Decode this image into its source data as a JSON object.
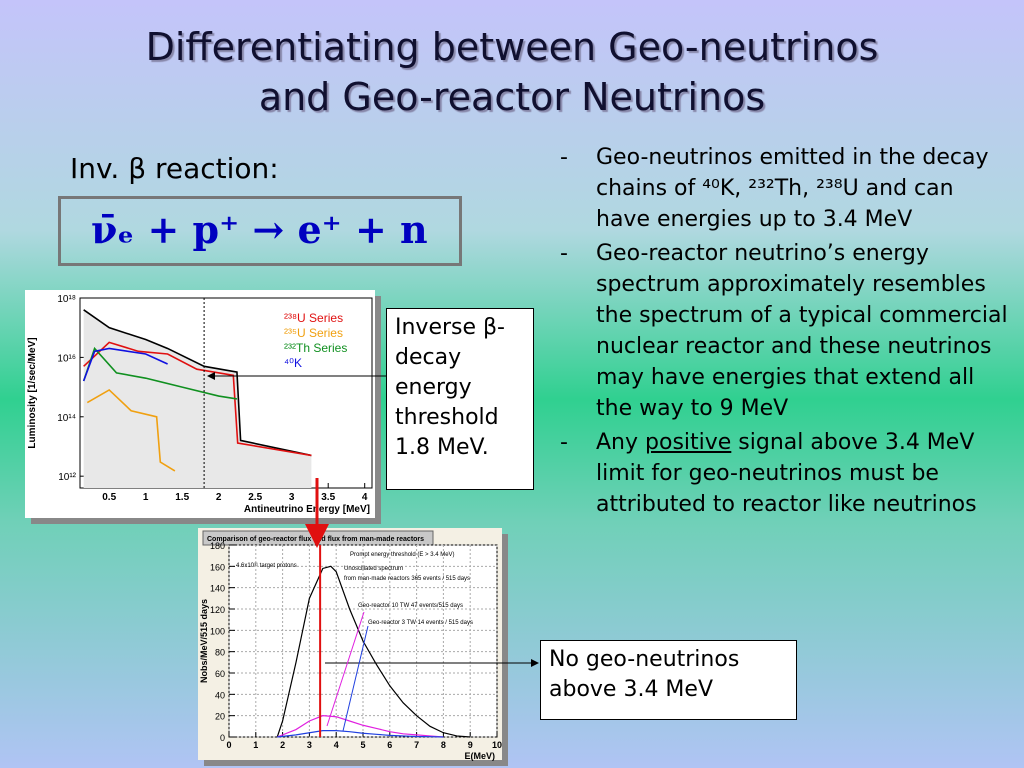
{
  "title_lines": [
    "Differentiating between Geo-neutrinos",
    "and Geo-reactor Neutrinos"
  ],
  "reaction_label": "Inv. β reaction:",
  "equation": "ν̄ₑ + p⁺ → e⁺ + n",
  "bullets": [
    {
      "marker": "-",
      "parts": [
        "Geo-neutrinos emitted in the decay chains of ⁴⁰K, ²³²Th, ²³⁸U and can have energies up to 3.4 MeV"
      ]
    },
    {
      "marker": "-",
      "parts": [
        "Geo-reactor neutrino’s energy spectrum approximately resembles the spectrum of a typical commercial nuclear reactor and these neutrinos may have energies that extend all the way to 9 MeV"
      ]
    },
    {
      "marker": "-",
      "parts": [
        "Any ",
        "positive",
        " signal above 3.4 MeV limit for geo-neutrinos must be attributed to reactor like neutrinos"
      ]
    }
  ],
  "callout_threshold": "Inverse β-decay energy threshold 1.8 MeV.",
  "callout_no_geo": "No geo-neutrinos above 3.4 MeV",
  "chart_data": [
    {
      "type": "line",
      "ylabel": "Luminosity [1/sec/MeV]",
      "xlabel": "Antineutrino Energy [MeV]",
      "log_y": true,
      "xlim": [
        0.1,
        4.1
      ],
      "ylim": [
        400000000000.0,
        1e+18
      ],
      "xticks": [
        0.5,
        1,
        1.5,
        2,
        2.5,
        3,
        3.5,
        4
      ],
      "yticks": [
        {
          "value": 1000000000000.0,
          "label": "10¹²"
        },
        {
          "value": 100000000000000.0,
          "label": "10¹⁴"
        },
        {
          "value": 1e+16,
          "label": "10¹⁶"
        },
        {
          "value": 1e+18,
          "label": "10¹⁸"
        }
      ],
      "threshold": 1.8,
      "series": [
        {
          "color": "#000000",
          "fill": "#e8e8e8",
          "x": [
            0.15,
            0.5,
            1,
            1.3,
            1.8,
            2.25,
            2.3,
            3.27
          ],
          "values": [
            4e+17,
            1e+17,
            4e+16,
            2e+16,
            5000000000000000.0,
            3200000000000000.0,
            16000000000000.0,
            5000000000000.0
          ]
        },
        {
          "name": "²³⁸U Series",
          "color": "#e01010",
          "x": [
            0.15,
            0.5,
            0.9,
            1.3,
            1.7,
            2.2,
            2.26,
            3.27
          ],
          "values": [
            5000000000000000.0,
            3.2e+16,
            1.6e+16,
            1.3e+16,
            4000000000000000.0,
            2500000000000000.0,
            13000000000000.0,
            5000000000000.0
          ]
        },
        {
          "name": "²³⁵U Series",
          "color": "#f0a010",
          "x": [
            0.2,
            0.5,
            0.8,
            1.15,
            1.2,
            1.4
          ],
          "values": [
            300000000000000.0,
            800000000000000.0,
            160000000000000.0,
            100000000000000.0,
            3000000000000.0,
            1500000000000.0
          ]
        },
        {
          "name": "²³²Th Series",
          "color": "#109020",
          "x": [
            0.15,
            0.3,
            0.6,
            1,
            1.5,
            2,
            2.25
          ],
          "values": [
            1600000000000000.0,
            2e+16,
            3000000000000000.0,
            2000000000000000.0,
            1000000000000000.0,
            500000000000000.0,
            400000000000000.0
          ]
        },
        {
          "name": "⁴⁰K",
          "color": "#1010e0",
          "x": [
            0.15,
            0.3,
            0.5,
            1,
            1.3
          ],
          "values": [
            1600000000000000.0,
            1.6e+16,
            2e+16,
            1.3e+16,
            6000000000000000.0
          ]
        }
      ]
    },
    {
      "type": "line",
      "title": "Comparison of geo-reactor flux and flux from man-made reactors",
      "ylabel": "Nobs/MeV/515 days",
      "xlabel": "E(MeV)",
      "xlim": [
        0,
        10
      ],
      "ylim": [
        0,
        180
      ],
      "xticks": [
        0,
        1,
        2,
        3,
        4,
        5,
        6,
        7,
        8,
        9,
        10
      ],
      "yticks": [
        0,
        20,
        40,
        60,
        80,
        100,
        120,
        140,
        160,
        180
      ],
      "grid": true,
      "threshold": 3.4,
      "threshold_label": "Prompt energy threshold (E > 3.4 MeV)",
      "annotations": [
        "4.6x10³¹ target protons",
        "Unoscillated spectrum",
        "from man-made reactors 365 events / 515 days",
        "Geo-reactor 10 TW 47 events/515 days",
        "Geo-reactor 3 TW 14 events / 515 days"
      ],
      "series": [
        {
          "color": "#000000",
          "x": [
            1.8,
            2,
            2.5,
            3,
            3.5,
            3.8,
            4,
            4.5,
            5,
            5.5,
            6,
            6.5,
            7,
            7.5,
            8,
            8.5,
            9
          ],
          "values": [
            0,
            15,
            70,
            130,
            158,
            160,
            155,
            120,
            90,
            68,
            48,
            32,
            20,
            10,
            4,
            1,
            0
          ]
        },
        {
          "color": "#e020e0",
          "x": [
            1.8,
            2.5,
            3,
            3.5,
            4,
            4.5,
            5,
            5.5,
            6,
            6.5,
            7,
            7.5,
            8
          ],
          "values": [
            0,
            7,
            15,
            20,
            19,
            15,
            11,
            8,
            5,
            3,
            2,
            1,
            0
          ]
        },
        {
          "color": "#2040e0",
          "x": [
            1.8,
            2.5,
            3,
            3.5,
            4,
            4.5,
            5,
            5.5,
            6,
            6.5,
            7,
            7.5,
            8
          ],
          "values": [
            0,
            2,
            4,
            6,
            6,
            5,
            3.5,
            2.5,
            1.5,
            1,
            0.5,
            0.3,
            0
          ]
        }
      ]
    }
  ]
}
